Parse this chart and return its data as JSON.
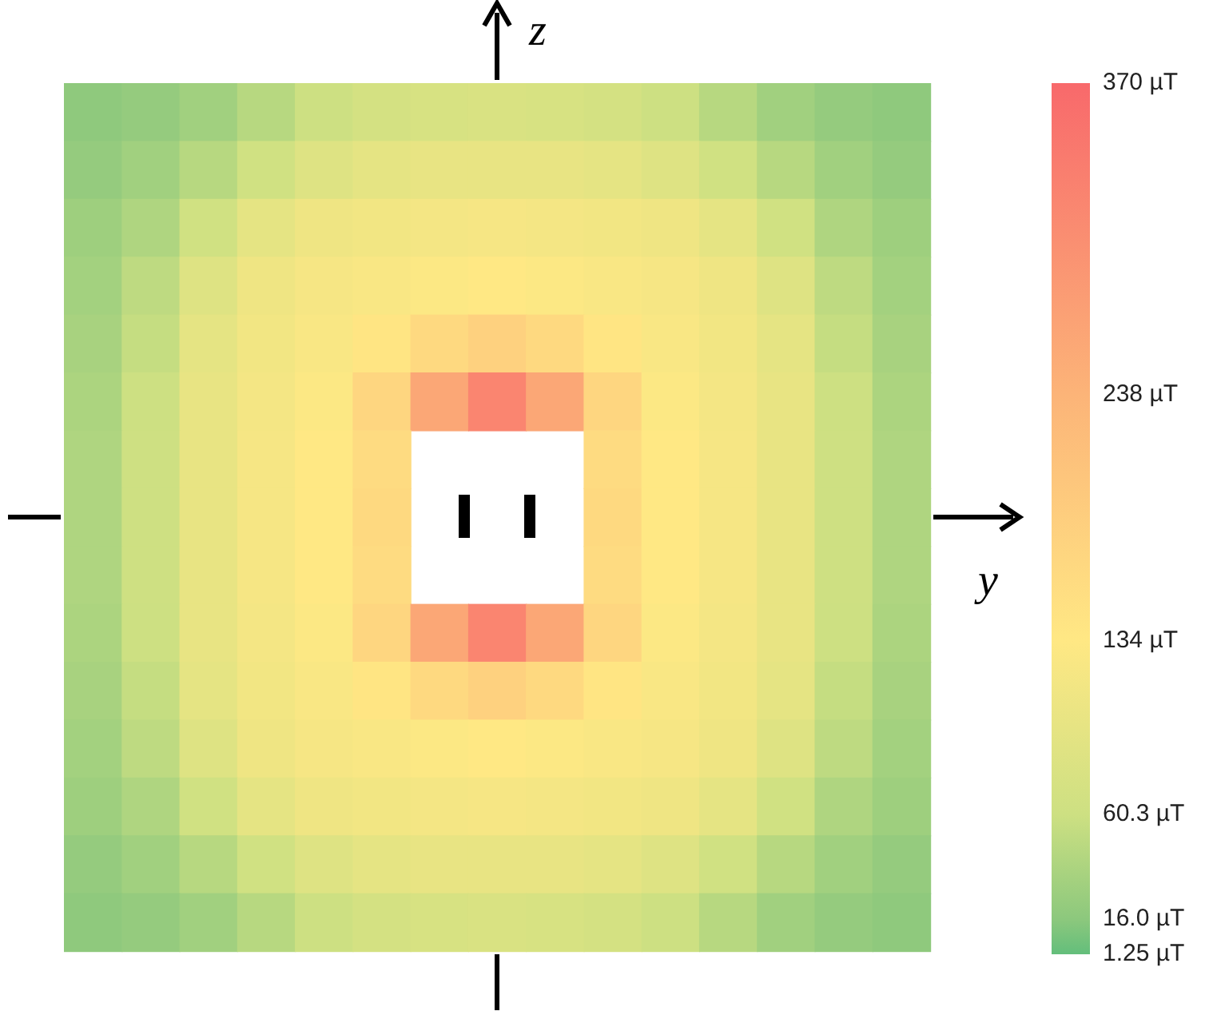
{
  "chart_data": {
    "type": "heatmap",
    "xlabel": "y",
    "ylabel": "z",
    "categories": [
      null,
      null,
      null,
      null,
      null,
      null,
      null,
      null,
      null,
      null,
      null,
      null,
      null,
      null,
      null
    ],
    "y_categories": [
      null,
      null,
      null,
      null,
      null,
      null,
      null,
      null,
      null,
      null,
      null,
      null,
      null,
      null,
      null
    ],
    "cells": [
      [
        18,
        22,
        30,
        45,
        60,
        70,
        75,
        78,
        75,
        70,
        60,
        45,
        30,
        22,
        18
      ],
      [
        22,
        30,
        45,
        65,
        85,
        95,
        100,
        100,
        100,
        95,
        85,
        65,
        45,
        30,
        22
      ],
      [
        28,
        40,
        65,
        95,
        110,
        115,
        118,
        120,
        118,
        115,
        110,
        95,
        65,
        40,
        28
      ],
      [
        32,
        50,
        85,
        110,
        120,
        125,
        130,
        135,
        130,
        125,
        120,
        110,
        85,
        50,
        32
      ],
      [
        35,
        55,
        95,
        115,
        125,
        140,
        165,
        180,
        165,
        140,
        125,
        115,
        95,
        55,
        35
      ],
      [
        38,
        60,
        100,
        118,
        130,
        170,
        260,
        320,
        260,
        170,
        130,
        118,
        100,
        60,
        38
      ],
      [
        40,
        62,
        100,
        120,
        135,
        160,
        null,
        null,
        null,
        160,
        135,
        120,
        100,
        62,
        40
      ],
      [
        40,
        62,
        100,
        120,
        135,
        165,
        null,
        null,
        null,
        165,
        135,
        120,
        100,
        62,
        40
      ],
      [
        40,
        62,
        100,
        120,
        135,
        160,
        null,
        null,
        null,
        160,
        135,
        120,
        100,
        62,
        40
      ],
      [
        38,
        60,
        100,
        118,
        130,
        170,
        260,
        320,
        260,
        170,
        130,
        118,
        100,
        60,
        38
      ],
      [
        35,
        55,
        95,
        115,
        125,
        140,
        165,
        180,
        165,
        140,
        125,
        115,
        95,
        55,
        35
      ],
      [
        32,
        50,
        85,
        110,
        120,
        125,
        130,
        135,
        130,
        125,
        120,
        110,
        85,
        50,
        32
      ],
      [
        28,
        40,
        65,
        95,
        110,
        115,
        118,
        120,
        118,
        115,
        110,
        95,
        65,
        40,
        28
      ],
      [
        22,
        30,
        45,
        65,
        85,
        95,
        100,
        100,
        100,
        95,
        85,
        65,
        45,
        30,
        22
      ],
      [
        18,
        22,
        30,
        45,
        60,
        70,
        75,
        78,
        75,
        70,
        60,
        45,
        30,
        22,
        18
      ]
    ],
    "clim": [
      1.25,
      370
    ],
    "cticks": [
      {
        "value": 1.25,
        "label": "1.25 µT"
      },
      {
        "value": 16.0,
        "label": "16.0 µT"
      },
      {
        "value": 60.3,
        "label": "60.3 µT"
      },
      {
        "value": 134,
        "label": "134 µT"
      },
      {
        "value": 238,
        "label": "238 µT"
      },
      {
        "value": 370,
        "label": "370 µT"
      }
    ]
  }
}
